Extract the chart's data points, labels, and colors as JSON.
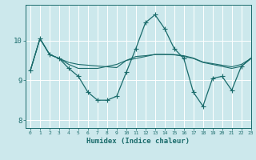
{
  "xlabel": "Humidex (Indice chaleur)",
  "bg_color": "#cce8ec",
  "grid_color": "#ffffff",
  "line_color": "#1a6b6b",
  "xlim": [
    -0.5,
    23
  ],
  "ylim": [
    7.8,
    10.9
  ],
  "yticks": [
    8,
    9,
    10
  ],
  "xticks": [
    0,
    1,
    2,
    3,
    4,
    5,
    6,
    7,
    8,
    9,
    10,
    11,
    12,
    13,
    14,
    15,
    16,
    17,
    18,
    19,
    20,
    21,
    22,
    23
  ],
  "series_main": [
    9.25,
    10.05,
    9.65,
    9.55,
    9.3,
    9.1,
    8.7,
    8.5,
    8.5,
    8.6,
    9.2,
    9.8,
    10.45,
    10.65,
    10.3,
    9.8,
    9.55,
    8.7,
    8.35,
    9.05,
    9.1,
    8.75,
    9.35,
    9.55
  ],
  "series_line2": [
    9.25,
    10.05,
    9.65,
    9.55,
    9.4,
    9.3,
    9.3,
    9.3,
    9.35,
    9.4,
    9.5,
    9.55,
    9.6,
    9.65,
    9.65,
    9.65,
    9.6,
    9.55,
    9.45,
    9.4,
    9.35,
    9.3,
    9.35,
    9.55
  ],
  "series_line3": [
    9.25,
    10.05,
    9.65,
    9.55,
    9.45,
    9.4,
    9.38,
    9.36,
    9.34,
    9.32,
    9.5,
    9.6,
    9.62,
    9.65,
    9.65,
    9.64,
    9.62,
    9.56,
    9.46,
    9.42,
    9.38,
    9.34,
    9.4,
    9.55
  ]
}
